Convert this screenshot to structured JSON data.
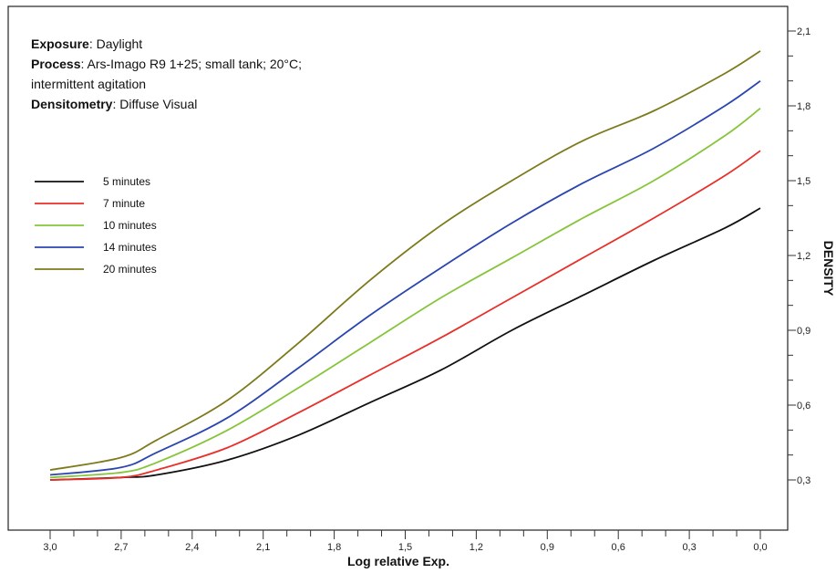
{
  "info": {
    "exposure_label": "Exposure",
    "exposure_value": ": Daylight",
    "process_label": "Process",
    "process_value": ": Ars-Imago R9 1+25; small tank; 20°C;",
    "process_value_line2": "intermittent agitation",
    "densitometry_label": "Densitometry",
    "densitometry_value": ": Diffuse Visual"
  },
  "chart_data": {
    "type": "line",
    "xlabel": "Log relative Exp.",
    "ylabel": "DENSITY",
    "xlim": [
      3.1,
      -0.05
    ],
    "ylim": [
      0.18,
      2.15
    ],
    "x_ticks": [
      "3,0",
      "2,7",
      "2,4",
      "2,1",
      "1,8",
      "1,5",
      "1,2",
      "0,9",
      "0,6",
      "0,3",
      "0,0"
    ],
    "x_tick_values": [
      3.0,
      2.7,
      2.4,
      2.1,
      1.8,
      1.5,
      1.2,
      0.9,
      0.6,
      0.3,
      0.0
    ],
    "y_ticks": [
      "0,3",
      "0,6",
      "0,9",
      "1,2",
      "1,5",
      "1,8",
      "2,1"
    ],
    "y_tick_values": [
      0.3,
      0.6,
      0.9,
      1.2,
      1.5,
      1.8,
      2.1
    ],
    "grid": false,
    "legend_position": "top-left",
    "series": [
      {
        "name": "5 minutes",
        "color": "#111111",
        "x": [
          3.0,
          2.7,
          2.55,
          2.25,
          1.95,
          1.65,
          1.35,
          1.05,
          0.75,
          0.45,
          0.15,
          0.0
        ],
        "y": [
          0.3,
          0.31,
          0.32,
          0.38,
          0.48,
          0.61,
          0.74,
          0.9,
          1.04,
          1.18,
          1.31,
          1.39
        ]
      },
      {
        "name": "7 minute",
        "color": "#e8302a",
        "x": [
          3.0,
          2.7,
          2.55,
          2.25,
          1.95,
          1.65,
          1.35,
          1.05,
          0.75,
          0.45,
          0.15,
          0.0
        ],
        "y": [
          0.3,
          0.31,
          0.34,
          0.43,
          0.57,
          0.72,
          0.87,
          1.03,
          1.19,
          1.35,
          1.52,
          1.62
        ]
      },
      {
        "name": "10 minutes",
        "color": "#86c43a",
        "x": [
          3.0,
          2.7,
          2.55,
          2.25,
          1.95,
          1.65,
          1.35,
          1.05,
          0.75,
          0.45,
          0.15,
          0.0
        ],
        "y": [
          0.31,
          0.33,
          0.37,
          0.5,
          0.67,
          0.85,
          1.03,
          1.19,
          1.35,
          1.5,
          1.68,
          1.79
        ]
      },
      {
        "name": "14 minutes",
        "color": "#2b45b0",
        "x": [
          3.0,
          2.7,
          2.55,
          2.25,
          1.95,
          1.65,
          1.35,
          1.05,
          0.75,
          0.45,
          0.15,
          0.0
        ],
        "y": [
          0.32,
          0.35,
          0.41,
          0.55,
          0.75,
          0.96,
          1.15,
          1.33,
          1.49,
          1.63,
          1.8,
          1.9
        ]
      },
      {
        "name": "20 minutes",
        "color": "#7d7a1c",
        "x": [
          3.0,
          2.7,
          2.55,
          2.25,
          1.95,
          1.65,
          1.35,
          1.05,
          0.75,
          0.45,
          0.15,
          0.0
        ],
        "y": [
          0.34,
          0.39,
          0.46,
          0.62,
          0.85,
          1.1,
          1.32,
          1.5,
          1.66,
          1.78,
          1.93,
          2.02
        ]
      }
    ]
  }
}
